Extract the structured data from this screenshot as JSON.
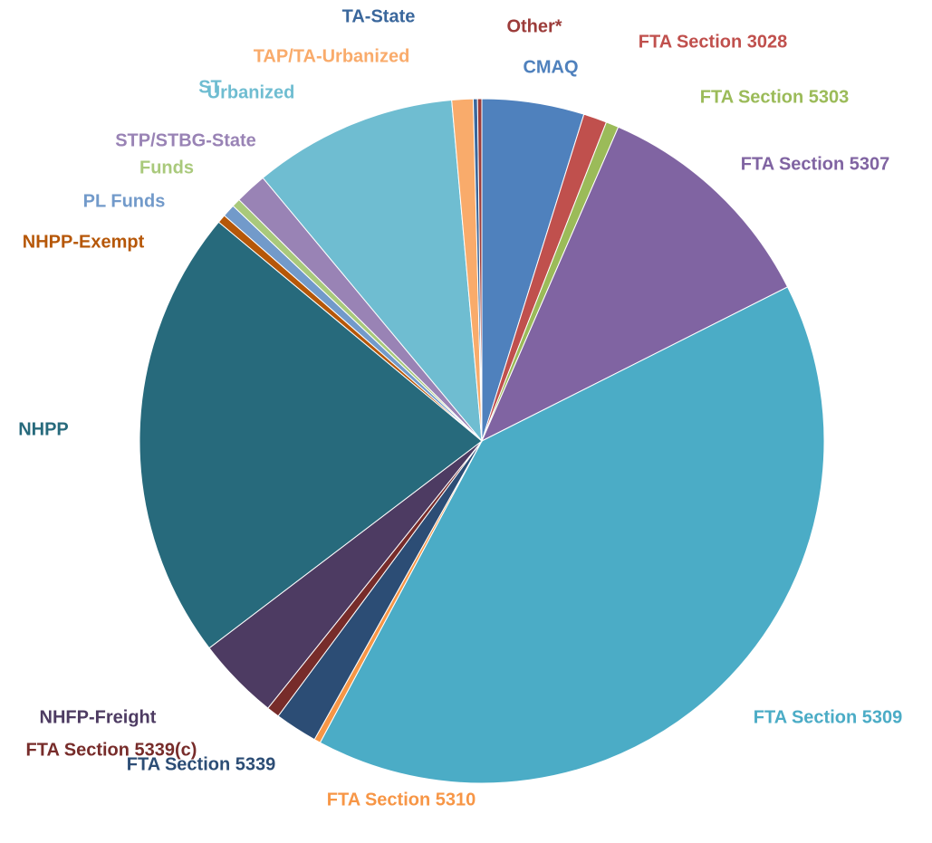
{
  "chart_data": {
    "type": "pie",
    "categories": [
      [
        "CMAQ"
      ],
      [
        "FTA Section 3028"
      ],
      [
        "FTA Section 5303"
      ],
      [
        "FTA Section 5307"
      ],
      [
        "FTA Section 5309"
      ],
      [
        "FTA Section 5310"
      ],
      [
        "FTA Section 5339"
      ],
      [
        "FTA Section 5339(c)"
      ],
      [
        "NHFP-Freight"
      ],
      [
        "NHPP"
      ],
      [
        "NHPP-Exempt"
      ],
      [
        "PL Funds"
      ],
      [
        "Funds"
      ],
      [
        "STP/STBG-State"
      ],
      [
        "ST",
        "Urbanized"
      ],
      [
        "TAP/TA-Urbanized"
      ],
      [
        "TA-State"
      ],
      [
        "Other*"
      ]
    ],
    "values": [
      4.8,
      1.1,
      0.6,
      11,
      40.1,
      0.3,
      2,
      0.6,
      3.9,
      21.3,
      0.4,
      0.6,
      0.4,
      1.5,
      9.6,
      1,
      0.2,
      0.2
    ],
    "colors": [
      "#4f81bd",
      "#c0504d",
      "#9bbb59",
      "#8064a2",
      "#4bacc6",
      "#f79646",
      "#2c4d75",
      "#772c2a",
      "#4d3b62",
      "#276a7c",
      "#b65708",
      "#729aca",
      "#a9c97b",
      "#9983b5",
      "#6fbdd1",
      "#f9ab6b",
      "#3a679c",
      "#9c3c3a"
    ]
  }
}
